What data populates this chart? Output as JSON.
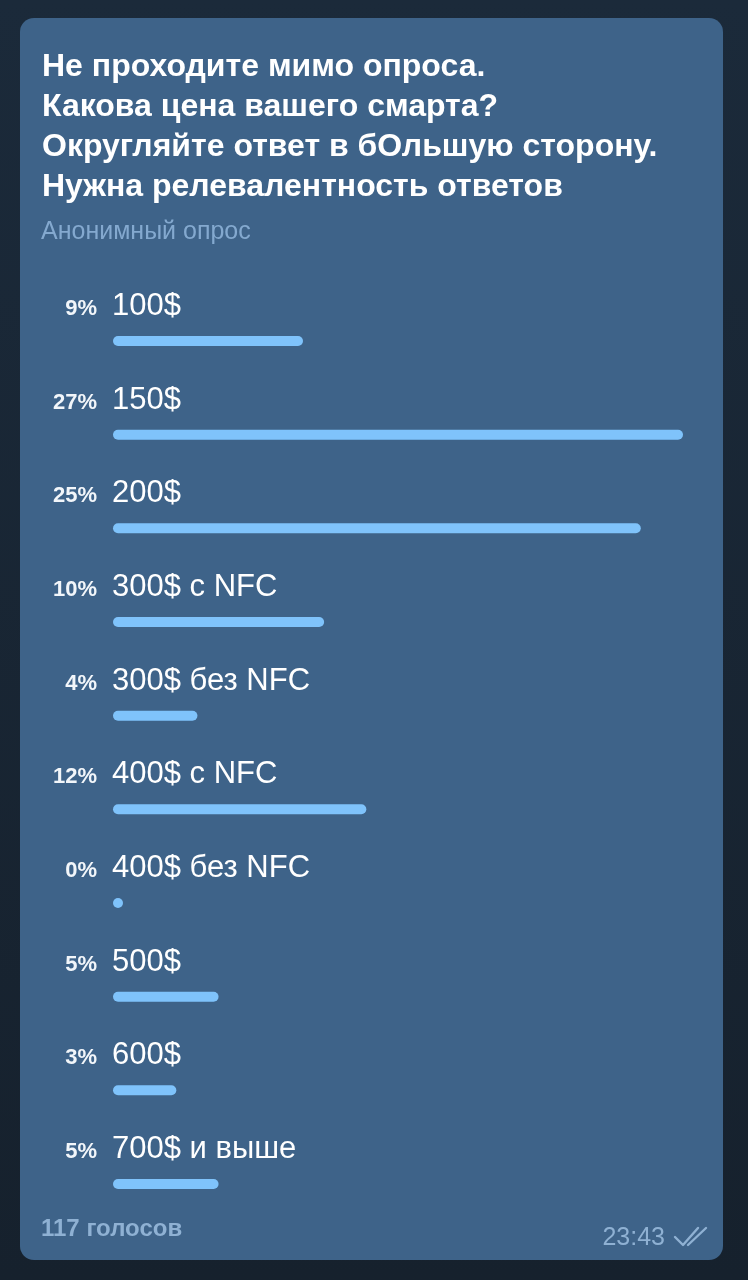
{
  "chart_data": {
    "type": "bar",
    "orientation": "horizontal",
    "title": "Не проходите мимо опроса.\nКакова цена вашего смарта?\nОкругляйте ответ в бОльшую сторону.\nНужна релевалентность ответов",
    "subtitle": "Анонимный опрос",
    "categories": [
      "100$",
      "150$",
      "200$",
      "300$ с NFC",
      "300$ без NFC",
      "400$ с NFC",
      "400$ без NFC",
      "500$",
      "600$",
      "700$ и выше"
    ],
    "values": [
      9,
      27,
      25,
      10,
      4,
      12,
      0,
      5,
      3,
      5
    ],
    "value_labels": [
      "9%",
      "27%",
      "25%",
      "10%",
      "4%",
      "12%",
      "0%",
      "5%",
      "3%",
      "5%"
    ],
    "color": "#7fc3fb",
    "annotations": [
      "117 голосов",
      "23:43"
    ]
  }
}
